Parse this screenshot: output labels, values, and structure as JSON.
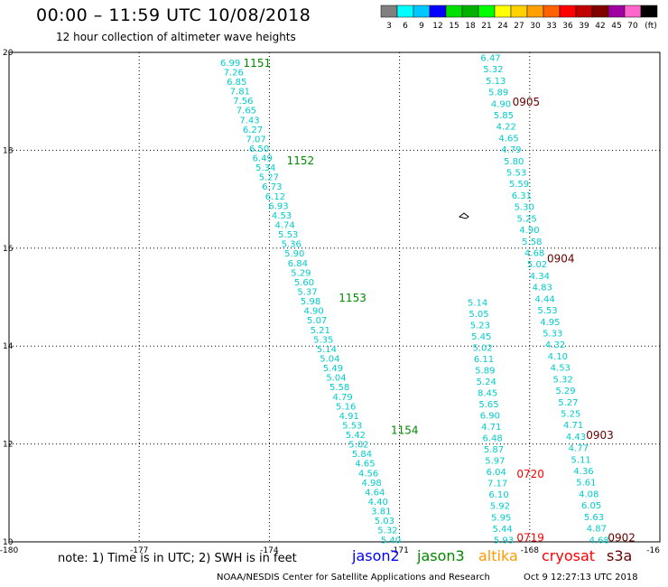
{
  "header": {
    "title": "00:00 – 11:59 UTC 10/08/2018",
    "subtitle": "12 hour collection of altimeter wave heights",
    "note": "note: 1) Time is in UTC; 2) SWH is in feet",
    "credit": "NOAA/NESDIS Center for Satellite Applications and Research",
    "timestamp": "Oct 9 12:27:13 UTC 2018"
  },
  "legend": {
    "ticks": [
      "3",
      "6",
      "9",
      "12",
      "15",
      "18",
      "21",
      "24",
      "27",
      "30",
      "33",
      "36",
      "39",
      "42",
      "45",
      "70",
      "(ft)"
    ],
    "colors": [
      "#808080",
      "#00ffff",
      "#00c8ff",
      "#0000ff",
      "#00e000",
      "#00b000",
      "#00ff00",
      "#ffff00",
      "#ffd000",
      "#ffa000",
      "#ff6000",
      "#ff0000",
      "#c00000",
      "#800000",
      "#a000a0",
      "#ff66cc",
      "#000000"
    ]
  },
  "satellites": [
    {
      "name": "jason2",
      "color": "#0000ff"
    },
    {
      "name": "jason3",
      "color": "#008800"
    },
    {
      "name": "altika",
      "color": "#ff9900"
    },
    {
      "name": "cryosat",
      "color": "#ff0000"
    },
    {
      "name": "s3a",
      "color": "#660000"
    }
  ],
  "chart_data": {
    "type": "scatter",
    "title": "00:00 – 11:59 UTC 10/08/2018",
    "subtitle": "12 hour collection of altimeter wave heights",
    "x_ticks": [
      "-180",
      "-177",
      "-174",
      "-171",
      "-168",
      "-16"
    ],
    "y_ticks": [
      "20",
      "18",
      "16",
      "14",
      "12",
      "10"
    ],
    "xlim": [
      -180,
      -165
    ],
    "ylim": [
      10,
      20
    ],
    "grid": true,
    "value_color": "#00cccc",
    "tracks": [
      {
        "color": "#008800",
        "labels": [
          {
            "text": "1151",
            "lon": -174.6,
            "lat": 19.8
          },
          {
            "text": "1152",
            "lon": -173.6,
            "lat": 17.8
          },
          {
            "text": "1153",
            "lon": -172.4,
            "lat": 15.0
          },
          {
            "text": "1154",
            "lon": -171.2,
            "lat": 12.3
          }
        ]
      },
      {
        "color": "#660000",
        "labels": [
          {
            "text": "0905",
            "lon": -168.4,
            "lat": 19.0
          },
          {
            "text": "0904",
            "lon": -167.6,
            "lat": 15.8
          },
          {
            "text": "0903",
            "lon": -166.7,
            "lat": 12.2
          },
          {
            "text": "0902",
            "lon": -166.2,
            "lat": 10.1
          }
        ]
      },
      {
        "color": "#ff0000",
        "labels": [
          {
            "text": "0720",
            "lon": -168.3,
            "lat": 11.4
          },
          {
            "text": "0719",
            "lon": -168.3,
            "lat": 10.1
          }
        ]
      }
    ],
    "series": [
      {
        "name": "1151-1154",
        "lon_start": -174.9,
        "lat_start": 19.8,
        "lon_end": -171.2,
        "lat_end": 10.05,
        "values": [
          "6.99",
          "7.26",
          "6.85",
          "7.81",
          "7.56",
          "7.65",
          "7.43",
          "6.27",
          "7.07",
          "6.50",
          "6.49",
          "5.34",
          "5.27",
          "6.73",
          "6.12",
          "6.93",
          "4.53",
          "4.74",
          "5.53",
          "5.36",
          "5.90",
          "6.84",
          "5.29",
          "5.60",
          "5.37",
          "5.98",
          "4.90",
          "5.07",
          "5.21",
          "5.35",
          "5.14",
          "5.04",
          "5.49",
          "5.04",
          "5.58",
          "4.79",
          "5.16",
          "4.91",
          "5.53",
          "5.42",
          "5.02",
          "5.84",
          "4.65",
          "4.56",
          "4.98",
          "4.64",
          "4.40",
          "3.81",
          "5.03",
          "5.32",
          "5.40"
        ]
      },
      {
        "name": "0905-0902",
        "lon_start": -168.9,
        "lat_start": 19.9,
        "lon_end": -166.4,
        "lat_end": 10.05,
        "values": [
          "6.47",
          "5.32",
          "5.13",
          "5.89",
          "4.90",
          "5.85",
          "4.22",
          "4.65",
          "4.79",
          "5.80",
          "5.53",
          "5.59",
          "6.31",
          "5.30",
          "5.25",
          "4.90",
          "5.58",
          "4.68",
          "5.02",
          "4.34",
          "4.83",
          "4.44",
          "5.53",
          "4.95",
          "5.33",
          "4.32",
          "4.10",
          "4.53",
          "5.32",
          "5.29",
          "5.27",
          "5.25",
          "4.71",
          "4.43",
          "4.77",
          "5.11",
          "4.36",
          "5.61",
          "4.08",
          "6.05",
          "5.63",
          "4.87",
          "4.68"
        ]
      },
      {
        "name": "0720-0719",
        "lon_start": -169.2,
        "lat_start": 14.9,
        "lon_end": -168.6,
        "lat_end": 10.05,
        "values": [
          "5.14",
          "5.05",
          "5.23",
          "5.45",
          "5.02",
          "6.11",
          "5.89",
          "5.24",
          "8.45",
          "5.65",
          "6.90",
          "4.71",
          "6.48",
          "5.87",
          "5.97",
          "6.04",
          "7.17",
          "6.10",
          "5.92",
          "5.95",
          "5.44",
          "5.93"
        ]
      }
    ]
  }
}
